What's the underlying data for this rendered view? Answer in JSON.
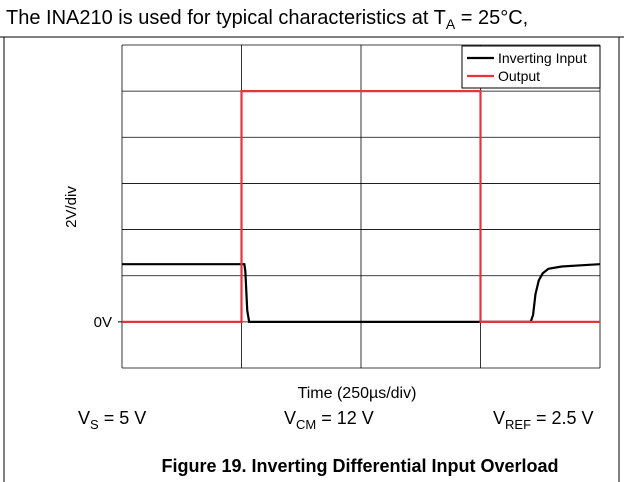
{
  "chart_data": {
    "type": "line",
    "header": {
      "text": "The INA210 is used for typical characteristics at T",
      "sub": "A",
      "rest": " = 25°C,"
    },
    "xlabel": "Time (250µs/div)",
    "ylabel": "2V/div",
    "caption": "Figure 19. Inverting Differential Input Overload",
    "annotations": [
      {
        "text": "V",
        "sub": "S",
        "rest": " = 5 V"
      },
      {
        "text": "V",
        "sub": "CM",
        "rest": " = 12 V"
      },
      {
        "text": "V",
        "sub": "REF",
        "rest": " = 2.5 V"
      }
    ],
    "xlim": [
      0,
      1000
    ],
    "ylim": [
      -2,
      12
    ],
    "grid_x": [
      0,
      250,
      500,
      750,
      1000
    ],
    "grid_y": [
      -2,
      0,
      2,
      4,
      6,
      8,
      10,
      12
    ],
    "yticks": [
      {
        "value": 0,
        "label": "0V"
      }
    ],
    "legend": "upper right",
    "series": [
      {
        "name": "Inverting Input",
        "color": "#000000",
        "x": [
          0,
          256,
          258,
          262,
          266,
          855,
          860,
          865,
          872,
          880,
          892,
          920,
          960,
          1000
        ],
        "values": [
          2.5,
          2.5,
          2.2,
          0.5,
          0,
          0,
          0.3,
          1.2,
          1.8,
          2.1,
          2.3,
          2.4,
          2.45,
          2.5
        ]
      },
      {
        "name": "Output",
        "color": "#e8323c",
        "x": [
          0,
          250,
          250,
          750,
          750,
          1000
        ],
        "values": [
          0,
          0,
          10,
          10,
          0,
          0
        ]
      }
    ]
  }
}
